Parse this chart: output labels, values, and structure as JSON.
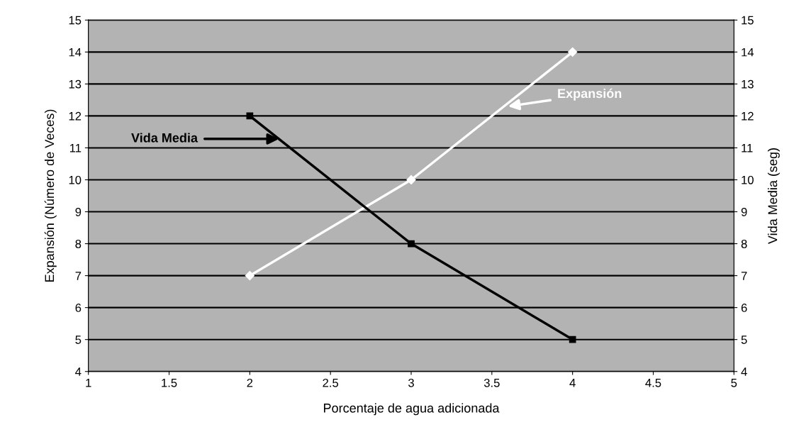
{
  "chart_data": {
    "type": "line",
    "xlabel": "Porcentaje de agua adicionada",
    "ylabel": "Expansión (Número de Veces)",
    "y2label": "Vida Media (seg)",
    "x": [
      2,
      3,
      4
    ],
    "series": [
      {
        "color": "#ffffff",
        "values": [
          7,
          10,
          14
        ],
        "marker": "diamond"
      },
      {
        "color": "#000000",
        "values": [
          12,
          8,
          5
        ],
        "marker": "square"
      }
    ],
    "xlim": [
      1,
      5
    ],
    "xticks": [
      1,
      1.5,
      2,
      2.5,
      3,
      3.5,
      4,
      4.5,
      5
    ],
    "ylim": [
      4,
      15
    ],
    "yticks": [
      4,
      5,
      6,
      7,
      8,
      9,
      10,
      11,
      12,
      13,
      14,
      15
    ],
    "y2lim": [
      4,
      15
    ],
    "y2ticks": [
      4,
      5,
      6,
      7,
      8,
      9,
      10,
      11,
      12,
      13,
      14,
      15
    ],
    "grid": "y",
    "annotations": [
      {
        "text": "Vida Media",
        "x": 2.18,
        "y": 11.28
      },
      {
        "text": "Expansión",
        "x": 3.6,
        "y": 12.3
      }
    ]
  }
}
